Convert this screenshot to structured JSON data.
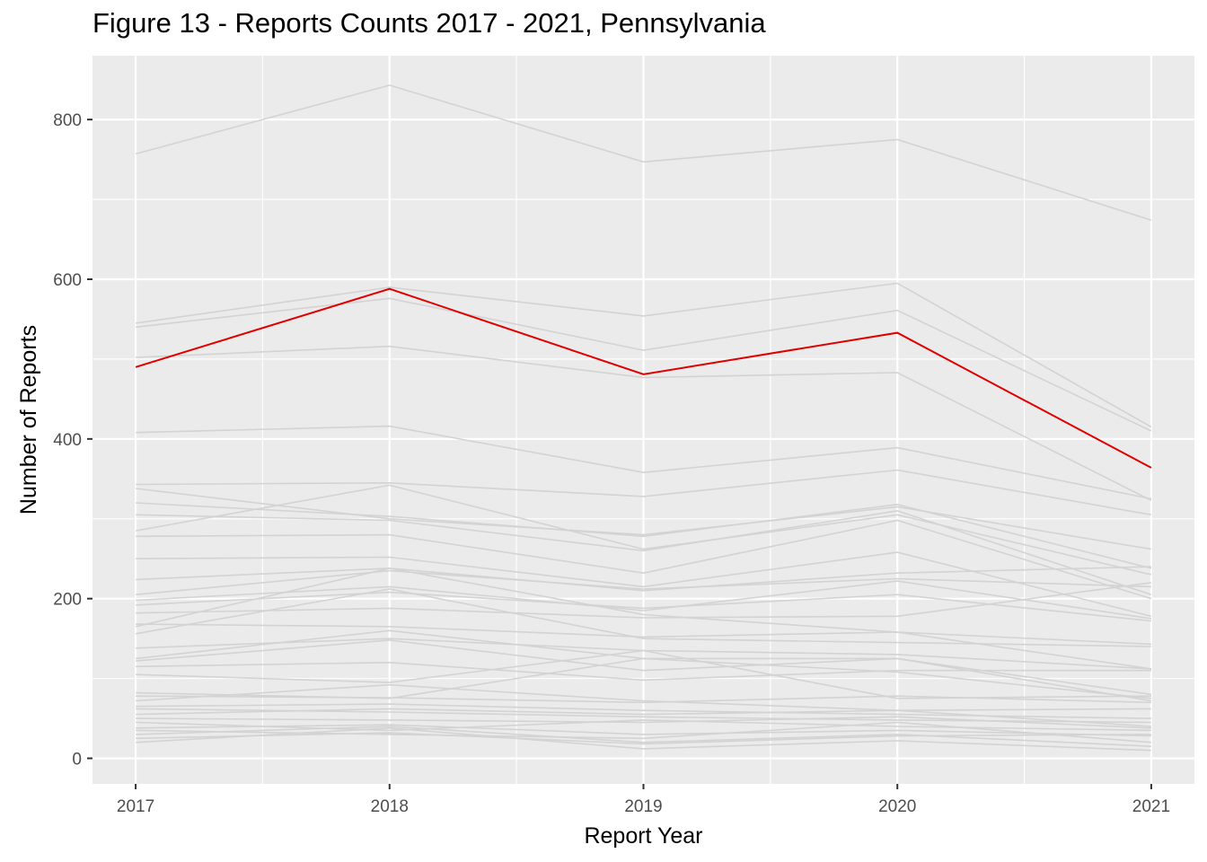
{
  "chart_data": {
    "type": "line",
    "title": "Figure 13 - Reports Counts 2017 - 2021, Pennsylvania",
    "xlabel": "Report Year",
    "ylabel": "Number of Reports",
    "x": [
      2017,
      2018,
      2019,
      2020,
      2021
    ],
    "xlim": [
      2016.83,
      2021.17
    ],
    "ylim": [
      -32,
      880
    ],
    "y_ticks": [
      0,
      200,
      400,
      600,
      800
    ],
    "grid": true,
    "legend": "none",
    "colors": {
      "highlight": "#e00000",
      "background_series": "#d3d3d3",
      "panel": "#ebebeb",
      "grid": "#ffffff"
    },
    "highlight": {
      "values": [
        490,
        588,
        481,
        533,
        364
      ]
    },
    "series": [
      {
        "values": [
          757,
          843,
          747,
          775,
          674
        ]
      },
      {
        "values": [
          545,
          590,
          554,
          595,
          415
        ]
      },
      {
        "values": [
          540,
          576,
          511,
          561,
          410
        ]
      },
      {
        "values": [
          502,
          516,
          477,
          483,
          323
        ]
      },
      {
        "values": [
          408,
          416,
          358,
          389,
          325
        ]
      },
      {
        "values": [
          343,
          345,
          328,
          361,
          305
        ]
      },
      {
        "values": [
          338,
          300,
          280,
          315,
          262
        ]
      },
      {
        "values": [
          320,
          303,
          278,
          318,
          238
        ]
      },
      {
        "values": [
          305,
          298,
          260,
          310,
          205
        ]
      },
      {
        "values": [
          285,
          342,
          262,
          305,
          230
        ]
      },
      {
        "values": [
          278,
          280,
          232,
          298,
          200
        ]
      },
      {
        "values": [
          250,
          252,
          215,
          258,
          178
        ]
      },
      {
        "values": [
          224,
          238,
          210,
          232,
          240
        ]
      },
      {
        "values": [
          205,
          235,
          212,
          225,
          215
        ]
      },
      {
        "values": [
          198,
          215,
          185,
          222,
          175
        ]
      },
      {
        "values": [
          192,
          208,
          188,
          205,
          172
        ]
      },
      {
        "values": [
          182,
          188,
          176,
          178,
          220
        ]
      },
      {
        "values": [
          168,
          165,
          152,
          158,
          143
        ]
      },
      {
        "values": [
          165,
          238,
          180,
          158,
          112
        ]
      },
      {
        "values": [
          156,
          212,
          150,
          145,
          140
        ]
      },
      {
        "values": [
          138,
          150,
          135,
          130,
          112
        ]
      },
      {
        "values": [
          125,
          160,
          125,
          125,
          80
        ]
      },
      {
        "values": [
          122,
          148,
          110,
          125,
          72
        ]
      },
      {
        "values": [
          115,
          120,
          98,
          110,
          110
        ]
      },
      {
        "values": [
          105,
          95,
          135,
          75,
          78
        ]
      },
      {
        "values": [
          82,
          75,
          125,
          108,
          75
        ]
      },
      {
        "values": [
          78,
          76,
          70,
          78,
          70
        ]
      },
      {
        "values": [
          72,
          92,
          72,
          60,
          62
        ]
      },
      {
        "values": [
          65,
          68,
          60,
          55,
          50
        ]
      },
      {
        "values": [
          62,
          58,
          52,
          48,
          45
        ]
      },
      {
        "values": [
          55,
          62,
          55,
          60,
          40
        ]
      },
      {
        "values": [
          50,
          48,
          45,
          52,
          38
        ]
      },
      {
        "values": [
          45,
          35,
          48,
          40,
          35
        ]
      },
      {
        "values": [
          38,
          42,
          30,
          35,
          28
        ]
      },
      {
        "values": [
          35,
          30,
          25,
          45,
          20
        ]
      },
      {
        "values": [
          30,
          40,
          20,
          30,
          15
        ]
      },
      {
        "values": [
          25,
          32,
          18,
          28,
          30
        ]
      },
      {
        "values": [
          20,
          38,
          12,
          22,
          10
        ]
      }
    ]
  }
}
